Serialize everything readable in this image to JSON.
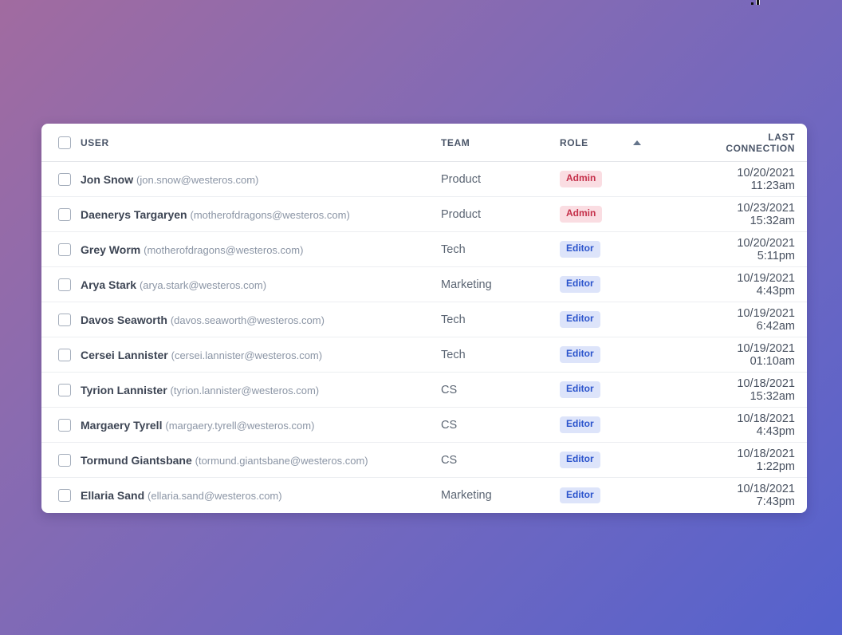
{
  "background": {
    "gradient_top_left": "#a16ba0",
    "gradient_bottom_right": "#5562cd"
  },
  "table": {
    "columns": [
      "USER",
      "TEAM",
      "ROLE",
      "LAST CONNECTION"
    ],
    "sort": {
      "column": "ROLE",
      "direction": "ascending",
      "icon": "triangle-up"
    },
    "roles": {
      "admin": {
        "label": "Admin",
        "bg": "#fadde2",
        "color": "#c5304a"
      },
      "editor": {
        "label": "Editor",
        "bg": "#dde4fa",
        "color": "#2a53cc"
      }
    },
    "rows": [
      {
        "name": "Jon Snow",
        "email": "(jon.snow@westeros.com)",
        "team": "Product",
        "role": "Admin",
        "last_connection": "10/20/2021 11:23am"
      },
      {
        "name": "Daenerys Targaryen",
        "email": "(motherofdragons@westeros.com)",
        "team": "Product",
        "role": "Admin",
        "last_connection": "10/23/2021 15:32am"
      },
      {
        "name": "Grey Worm",
        "email": "(motherofdragons@westeros.com)",
        "team": "Tech",
        "role": "Editor",
        "last_connection": "10/20/2021 5:11pm"
      },
      {
        "name": "Arya Stark",
        "email": "(arya.stark@westeros.com)",
        "team": "Marketing",
        "role": "Editor",
        "last_connection": "10/19/2021 4:43pm"
      },
      {
        "name": "Davos Seaworth",
        "email": "(davos.seaworth@westeros.com)",
        "team": "Tech",
        "role": "Editor",
        "last_connection": "10/19/2021 6:42am"
      },
      {
        "name": "Cersei Lannister",
        "email": "(cersei.lannister@westeros.com)",
        "team": "Tech",
        "role": "Editor",
        "last_connection": "10/19/2021 01:10am"
      },
      {
        "name": "Tyrion Lannister",
        "email": "(tyrion.lannister@westeros.com)",
        "team": "CS",
        "role": "Editor",
        "last_connection": "10/18/2021 15:32am"
      },
      {
        "name": "Margaery Tyrell",
        "email": "(margaery.tyrell@westeros.com)",
        "team": "CS",
        "role": "Editor",
        "last_connection": "10/18/2021 4:43pm"
      },
      {
        "name": "Tormund Giantsbane",
        "email": "(tormund.giantsbane@westeros.com)",
        "team": "CS",
        "role": "Editor",
        "last_connection": "10/18/2021 1:22pm"
      },
      {
        "name": "Ellaria Sand",
        "email": "(ellaria.sand@westeros.com)",
        "team": "Marketing",
        "role": "Editor",
        "last_connection": "10/18/2021 7:43pm"
      }
    ]
  }
}
